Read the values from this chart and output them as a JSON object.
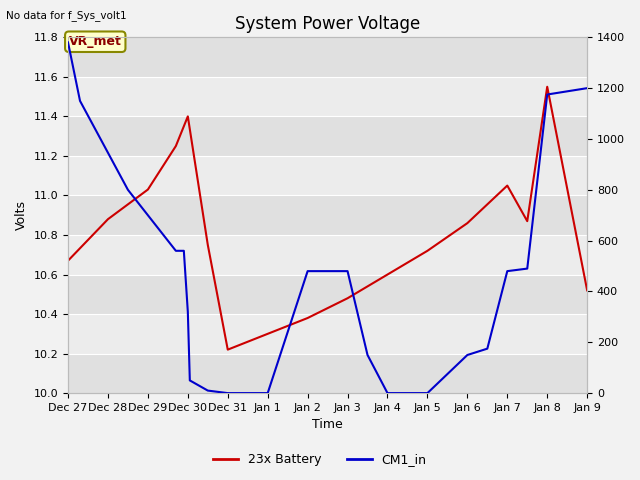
{
  "title": "System Power Voltage",
  "top_left_text": "No data for f_Sys_volt1",
  "xlabel": "Time",
  "ylabel_left": "Volts",
  "ylim_left": [
    10.0,
    11.8
  ],
  "ylim_right": [
    0,
    1400
  ],
  "annotation_text": "VR_met",
  "x_tick_labels": [
    "Dec 27",
    "Dec 28",
    "Dec 29",
    "Dec 30",
    "Dec 31",
    "Jan 1",
    "Jan 2",
    "Jan 3",
    "Jan 4",
    "Jan 5",
    "Jan 6",
    "Jan 7",
    "Jan 8",
    "Jan 9"
  ],
  "red_x": [
    0,
    1,
    2,
    2.7,
    3.0,
    3.5,
    4,
    5,
    6,
    7,
    8,
    9,
    10,
    11,
    11.5,
    12,
    13
  ],
  "red_y": [
    10.67,
    10.88,
    11.03,
    11.25,
    11.4,
    10.75,
    10.22,
    10.3,
    10.38,
    10.48,
    10.6,
    10.72,
    10.86,
    11.05,
    10.87,
    11.55,
    10.52
  ],
  "blue_x": [
    0,
    0.3,
    1.5,
    2.7,
    2.9,
    3.0,
    3.05,
    3.5,
    4,
    5,
    6,
    7,
    7.5,
    8,
    8.1,
    8.15,
    8.5,
    9,
    10,
    10.5,
    11,
    11.5,
    12,
    13
  ],
  "blue_y": [
    1380,
    1150,
    800,
    560,
    560,
    320,
    50,
    10,
    0,
    0,
    480,
    480,
    150,
    0,
    0,
    0,
    0,
    0,
    150,
    175,
    480,
    490,
    1175,
    1200
  ],
  "red_color": "#cc0000",
  "blue_color": "#0000cc",
  "legend_labels": [
    "23x Battery",
    "CM1_in"
  ],
  "band_edges": [
    10.0,
    10.2,
    10.4,
    10.6,
    10.8,
    11.0,
    11.2,
    11.4,
    11.6,
    11.8
  ],
  "band_color_odd": "#e0e0e0",
  "band_color_even": "#ececec",
  "bg_color": "#f2f2f2",
  "grid_line_color": "#ffffff",
  "title_fontsize": 12,
  "axis_label_fontsize": 9,
  "tick_fontsize": 8,
  "legend_fontsize": 9
}
